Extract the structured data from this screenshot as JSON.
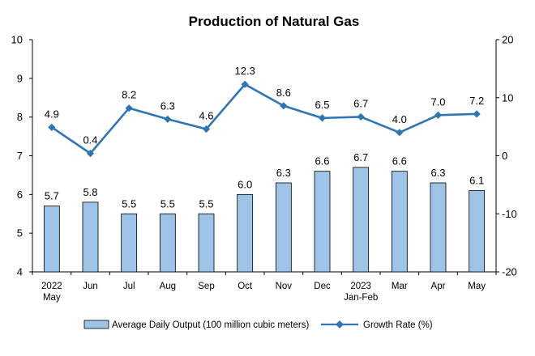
{
  "chart_data": {
    "type": "bar+line",
    "title": "Production of Natural Gas",
    "categories": [
      [
        "2022",
        "May"
      ],
      [
        "Jun"
      ],
      [
        "Jul"
      ],
      [
        "Aug"
      ],
      [
        "Sep"
      ],
      [
        "Oct"
      ],
      [
        "Nov"
      ],
      [
        "Dec"
      ],
      [
        "2023",
        "Jan-Feb"
      ],
      [
        "Mar"
      ],
      [
        "Apr"
      ],
      [
        "May"
      ]
    ],
    "series": [
      {
        "name": "Average Daily Output (100 million cubic meters)",
        "type": "bar",
        "axis": "left",
        "color": "#9DC3E6",
        "edge_color": "#000000",
        "values": [
          5.7,
          5.8,
          5.5,
          5.5,
          5.5,
          6.0,
          6.3,
          6.6,
          6.7,
          6.6,
          6.3,
          6.1
        ],
        "labels": [
          "5.7",
          "5.8",
          "5.5",
          "5.5",
          "5.5",
          "6.0",
          "6.3",
          "6.6",
          "6.7",
          "6.6",
          "6.3",
          "6.1"
        ]
      },
      {
        "name": "Growth Rate (%)",
        "type": "line",
        "axis": "right",
        "color": "#2E75B6",
        "marker": "diamond",
        "values": [
          4.9,
          0.4,
          8.2,
          6.3,
          4.6,
          12.3,
          8.6,
          6.5,
          6.7,
          4.0,
          7.0,
          7.2
        ],
        "labels": [
          "4.9",
          "0.4",
          "8.2",
          "6.3",
          "4.6",
          "12.3",
          "8.6",
          "6.5",
          "6.7",
          "4.0",
          "7.0",
          "7.2"
        ]
      }
    ],
    "y_left": {
      "min": 4,
      "max": 10,
      "ticks": [
        "4",
        "5",
        "6",
        "7",
        "8",
        "9",
        "10"
      ]
    },
    "y_right": {
      "min": -20,
      "max": 20,
      "ticks": [
        "-20",
        "-10",
        "0",
        "10",
        "20"
      ]
    },
    "grid": false,
    "legend_position": "bottom"
  }
}
